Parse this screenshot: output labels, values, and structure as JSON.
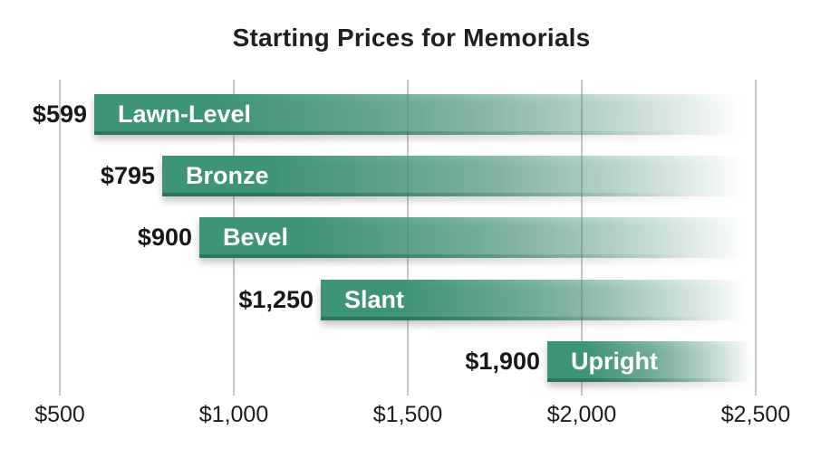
{
  "title": "Starting Prices for Memorials",
  "chart_data": {
    "type": "bar",
    "orientation": "horizontal",
    "title": "Starting Prices for Memorials",
    "categories": [
      "Lawn-Level",
      "Bronze",
      "Bevel",
      "Slant",
      "Upright"
    ],
    "values": [
      599,
      795,
      900,
      1250,
      1900
    ],
    "value_labels": [
      "$599",
      "$795",
      "$900",
      "$1,250",
      "$1,900"
    ],
    "series": [
      {
        "name": "Starting Price",
        "values": [
          599,
          795,
          900,
          1250,
          1900
        ]
      }
    ],
    "x_axis": {
      "min": 500,
      "max": 2500,
      "tick_values": [
        500,
        1000,
        1500,
        2000,
        2500
      ],
      "tick_labels": [
        "$500",
        "$1,000",
        "$1,500",
        "$2,000",
        "$2,500"
      ]
    },
    "bar_end_value": 2500,
    "grid": "vertical-gridlines-on",
    "legend": "none",
    "style_notes": "bars start at their value and fade to white toward the right end",
    "colors": {
      "bar_color": "#3E9478",
      "bar_bottom_edge": "#205C48",
      "gridline": "#C6C6C6",
      "text": "#221F20",
      "bar_text": "#FFFFFF"
    }
  }
}
